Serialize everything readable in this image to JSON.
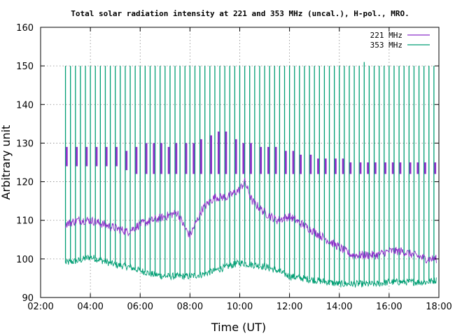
{
  "chart_data": {
    "type": "line",
    "title": "Total solar radiation intensity at 221 and 353 MHz (uncal.), H-pol., MRO.",
    "xlabel": "Time (UT)",
    "ylabel": "Arbitrary unit",
    "xlim": [
      2,
      18
    ],
    "ylim": [
      90,
      160
    ],
    "x_ticks": [
      2,
      4,
      6,
      8,
      10,
      12,
      14,
      16,
      18
    ],
    "x_tick_labels": [
      "02:00",
      "04:00",
      "06:00",
      "08:00",
      "10:00",
      "12:00",
      "14:00",
      "16:00",
      "18:00"
    ],
    "y_ticks": [
      90,
      100,
      110,
      120,
      130,
      140,
      150,
      160
    ],
    "y_tick_labels": [
      "90",
      "100",
      "110",
      "120",
      "130",
      "140",
      "150",
      "160"
    ],
    "grid": "dotted",
    "legend_position": "top-right",
    "series": [
      {
        "name": "221 MHz",
        "color": "#8b2fc9",
        "x": [
          3.0,
          3.5,
          4.0,
          4.5,
          5.0,
          5.5,
          6.0,
          6.5,
          7.0,
          7.5,
          7.8,
          8.0,
          8.5,
          9.0,
          9.5,
          10.0,
          10.2,
          10.5,
          11.0,
          11.5,
          12.0,
          12.5,
          13.0,
          13.5,
          14.0,
          14.5,
          15.0,
          15.5,
          16.0,
          16.5,
          17.0,
          17.5,
          17.9
        ],
        "values": [
          109,
          110,
          110,
          109,
          108,
          107,
          109,
          110,
          111,
          112,
          108,
          106,
          113,
          116,
          116,
          118,
          120,
          115,
          112,
          110,
          111,
          109,
          107,
          105,
          103,
          101,
          101,
          101,
          102,
          102,
          101,
          100,
          100
        ],
        "spikes_x": [
          3.05,
          3.45,
          3.85,
          4.25,
          4.65,
          5.05,
          5.45,
          5.85,
          6.25,
          6.55,
          6.85,
          7.15,
          7.45,
          7.85,
          8.15,
          8.45,
          8.85,
          9.15,
          9.45,
          9.85,
          10.15,
          10.45,
          10.85,
          11.15,
          11.45,
          11.85,
          12.15,
          12.45,
          12.85,
          13.15,
          13.45,
          13.85,
          14.15,
          14.45,
          14.85,
          15.15,
          15.45,
          15.85,
          16.15,
          16.45,
          16.85,
          17.15,
          17.45,
          17.85
        ],
        "spikes_top": [
          129,
          129,
          129,
          129,
          129,
          129,
          128,
          129,
          130,
          130,
          130,
          129,
          130,
          130,
          130,
          131,
          132,
          133,
          133,
          131,
          130,
          130,
          129,
          129,
          129,
          128,
          128,
          127,
          127,
          126,
          126,
          126,
          126,
          125,
          125,
          125,
          125,
          125,
          125,
          125,
          125,
          125,
          125,
          125
        ],
        "spikes_bottom": [
          124,
          124,
          124,
          124,
          124,
          124,
          123,
          122,
          122,
          122,
          122,
          122,
          122,
          122,
          122,
          122,
          122,
          122,
          122,
          122,
          122,
          122,
          122,
          122,
          122,
          122,
          122,
          122,
          122,
          122,
          122,
          122,
          122,
          122,
          122,
          122,
          122,
          122,
          122,
          122,
          122,
          122,
          122,
          122
        ]
      },
      {
        "name": "353 MHz",
        "color": "#009e73",
        "x": [
          3.0,
          3.5,
          4.0,
          4.5,
          5.0,
          5.5,
          6.0,
          6.5,
          7.0,
          7.5,
          8.0,
          8.5,
          9.0,
          9.5,
          10.0,
          10.5,
          11.0,
          11.5,
          12.0,
          12.5,
          13.0,
          13.5,
          14.0,
          14.5,
          15.0,
          15.5,
          16.0,
          16.5,
          17.0,
          17.5,
          17.9
        ],
        "values": [
          99,
          99.5,
          100.5,
          99.5,
          98.5,
          98,
          97,
          96,
          95.5,
          95.5,
          95.5,
          96,
          97,
          98,
          99,
          98.5,
          98,
          97,
          95.5,
          95,
          94.5,
          94,
          93.5,
          93.5,
          93.5,
          93.5,
          94,
          94,
          94,
          94,
          94.5
        ],
        "spikes_x": [
          3.0,
          3.2,
          3.4,
          3.6,
          3.8,
          4.0,
          4.2,
          4.4,
          4.6,
          4.8,
          5.0,
          5.2,
          5.4,
          5.6,
          5.8,
          6.0,
          6.2,
          6.4,
          6.6,
          6.8,
          7.0,
          7.2,
          7.4,
          7.6,
          7.8,
          8.0,
          8.2,
          8.4,
          8.6,
          8.8,
          9.0,
          9.2,
          9.4,
          9.6,
          9.8,
          10.0,
          10.2,
          10.4,
          10.6,
          10.8,
          11.0,
          11.2,
          11.4,
          11.6,
          11.8,
          12.0,
          12.2,
          12.4,
          12.6,
          12.8,
          13.0,
          13.2,
          13.4,
          13.6,
          13.8,
          14.0,
          14.2,
          14.4,
          14.6,
          14.8,
          15.0,
          15.2,
          15.4,
          15.6,
          15.8,
          16.0,
          16.2,
          16.4,
          16.6,
          16.8,
          17.0,
          17.2,
          17.4,
          17.6,
          17.8
        ],
        "spikes_top": 150,
        "spike_exception": {
          "x": 15.0,
          "top": 151
        }
      }
    ]
  }
}
